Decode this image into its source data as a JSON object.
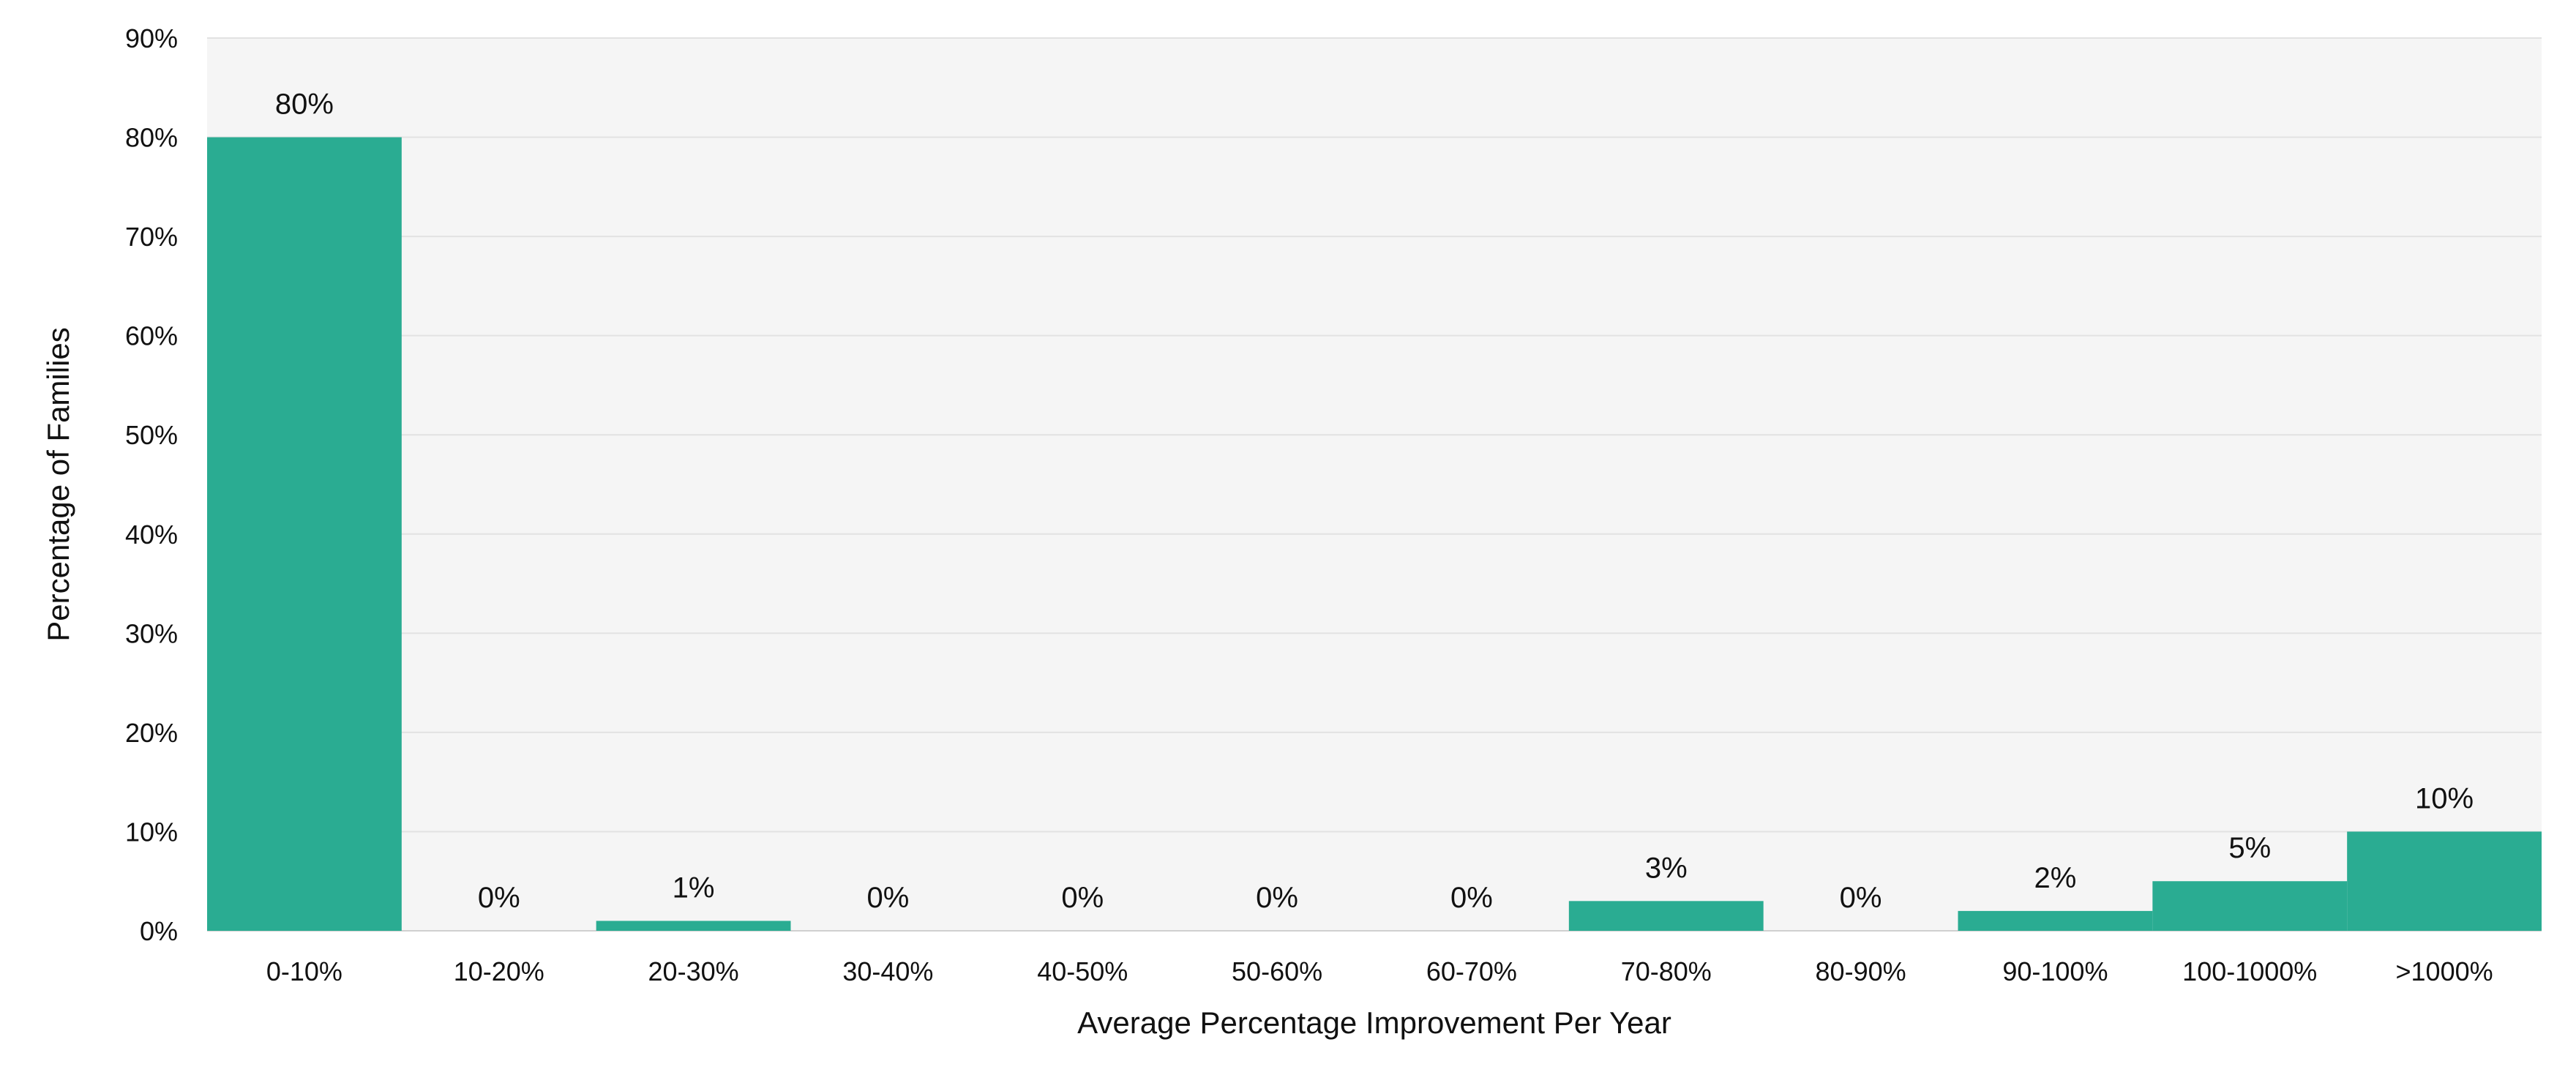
{
  "chart_data": {
    "type": "bar",
    "title": "",
    "xlabel": "Average Percentage Improvement Per Year",
    "ylabel": "Percentage of Families",
    "categories": [
      "0-10%",
      "10-20%",
      "20-30%",
      "30-40%",
      "40-50%",
      "50-60%",
      "60-70%",
      "70-80%",
      "80-90%",
      "90-100%",
      "100-1000%",
      ">1000%"
    ],
    "values": [
      80,
      0,
      1,
      0,
      0,
      0,
      0,
      3,
      0,
      2,
      5,
      10
    ],
    "data_labels": [
      "80%",
      "0%",
      "1%",
      "0%",
      "0%",
      "0%",
      "0%",
      "3%",
      "0%",
      "2%",
      "5%",
      "10%"
    ],
    "ylim": [
      0,
      90
    ],
    "yticks": [
      0,
      10,
      20,
      30,
      40,
      50,
      60,
      70,
      80,
      90
    ],
    "ytick_labels": [
      "0%",
      "10%",
      "20%",
      "30%",
      "40%",
      "50%",
      "60%",
      "70%",
      "80%",
      "90%"
    ],
    "grid": true,
    "legend": "none",
    "colors": {
      "bar": "#2aac92",
      "plot_background": "#f5f5f5",
      "gridline": "#e2e2e2"
    }
  }
}
